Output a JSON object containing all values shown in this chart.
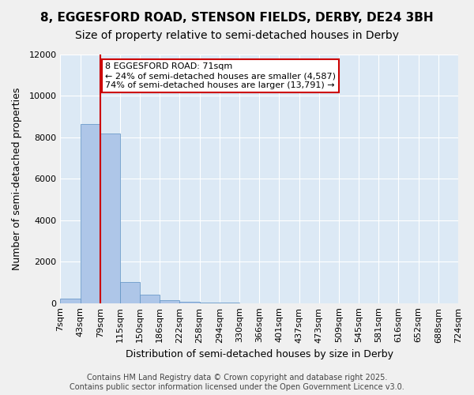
{
  "title_line1": "8, EGGESFORD ROAD, STENSON FIELDS, DERBY, DE24 3BH",
  "title_line2": "Size of property relative to semi-detached houses in Derby",
  "xlabel": "Distribution of semi-detached houses by size in Derby",
  "ylabel": "Number of semi-detached properties",
  "bin_labels": [
    "7sqm",
    "43sqm",
    "79sqm",
    "115sqm",
    "150sqm",
    "186sqm",
    "222sqm",
    "258sqm",
    "294sqm",
    "330sqm",
    "366sqm",
    "401sqm",
    "437sqm",
    "473sqm",
    "509sqm",
    "545sqm",
    "581sqm",
    "616sqm",
    "652sqm",
    "688sqm",
    "724sqm"
  ],
  "bar_values": [
    200,
    8650,
    8200,
    1000,
    400,
    150,
    50,
    20,
    10,
    5,
    3,
    2,
    1,
    1,
    0,
    0,
    0,
    0,
    0,
    0
  ],
  "bar_color": "#aec6e8",
  "bar_edge_color": "#5a8fc2",
  "background_color": "#dce9f5",
  "grid_color": "#ffffff",
  "ylim": [
    0,
    12000
  ],
  "yticks": [
    0,
    2000,
    4000,
    6000,
    8000,
    10000,
    12000
  ],
  "property_label": "8 EGGESFORD ROAD: 71sqm",
  "pct_smaller": 24,
  "pct_larger": 74,
  "count_smaller": 4587,
  "count_larger": 13791,
  "red_line_x": 1.5,
  "red_line_color": "#cc0000",
  "footer_line1": "Contains HM Land Registry data © Crown copyright and database right 2025.",
  "footer_line2": "Contains public sector information licensed under the Open Government Licence v3.0.",
  "title_fontsize": 11,
  "subtitle_fontsize": 10,
  "axis_label_fontsize": 9,
  "tick_fontsize": 8,
  "annotation_fontsize": 8,
  "footer_fontsize": 7
}
